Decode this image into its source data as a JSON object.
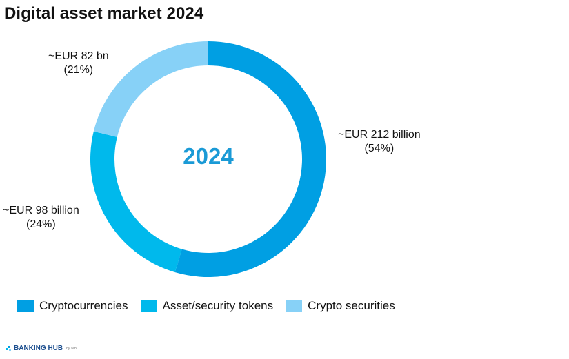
{
  "title": "Digital asset market 2024",
  "center_label": "2024",
  "footer": {
    "brand": "BANKING HUB",
    "by": "by zeb"
  },
  "colors": {
    "cryptocurrencies": "#009fe3",
    "asset_security_tokens": "#00b9ec",
    "crypto_securities": "#87d1f7",
    "center_text": "#1a9ad6"
  },
  "chart_data": {
    "type": "pie",
    "title": "Digital asset market 2024",
    "donut": true,
    "center_text": "2024",
    "legend_position": "bottom-left",
    "series": [
      {
        "name": "Cryptocurrencies",
        "value": 54,
        "label": "~EUR 212 billion",
        "percent_label": "(54%)",
        "color": "#009fe3"
      },
      {
        "name": "Asset/security tokens",
        "value": 24,
        "label": "~EUR 98 billion",
        "percent_label": "(24%)",
        "color": "#00b9ec"
      },
      {
        "name": "Crypto securities",
        "value": 21,
        "label": "~EUR 82 bn",
        "percent_label": "(21%)",
        "color": "#87d1f7"
      }
    ]
  }
}
